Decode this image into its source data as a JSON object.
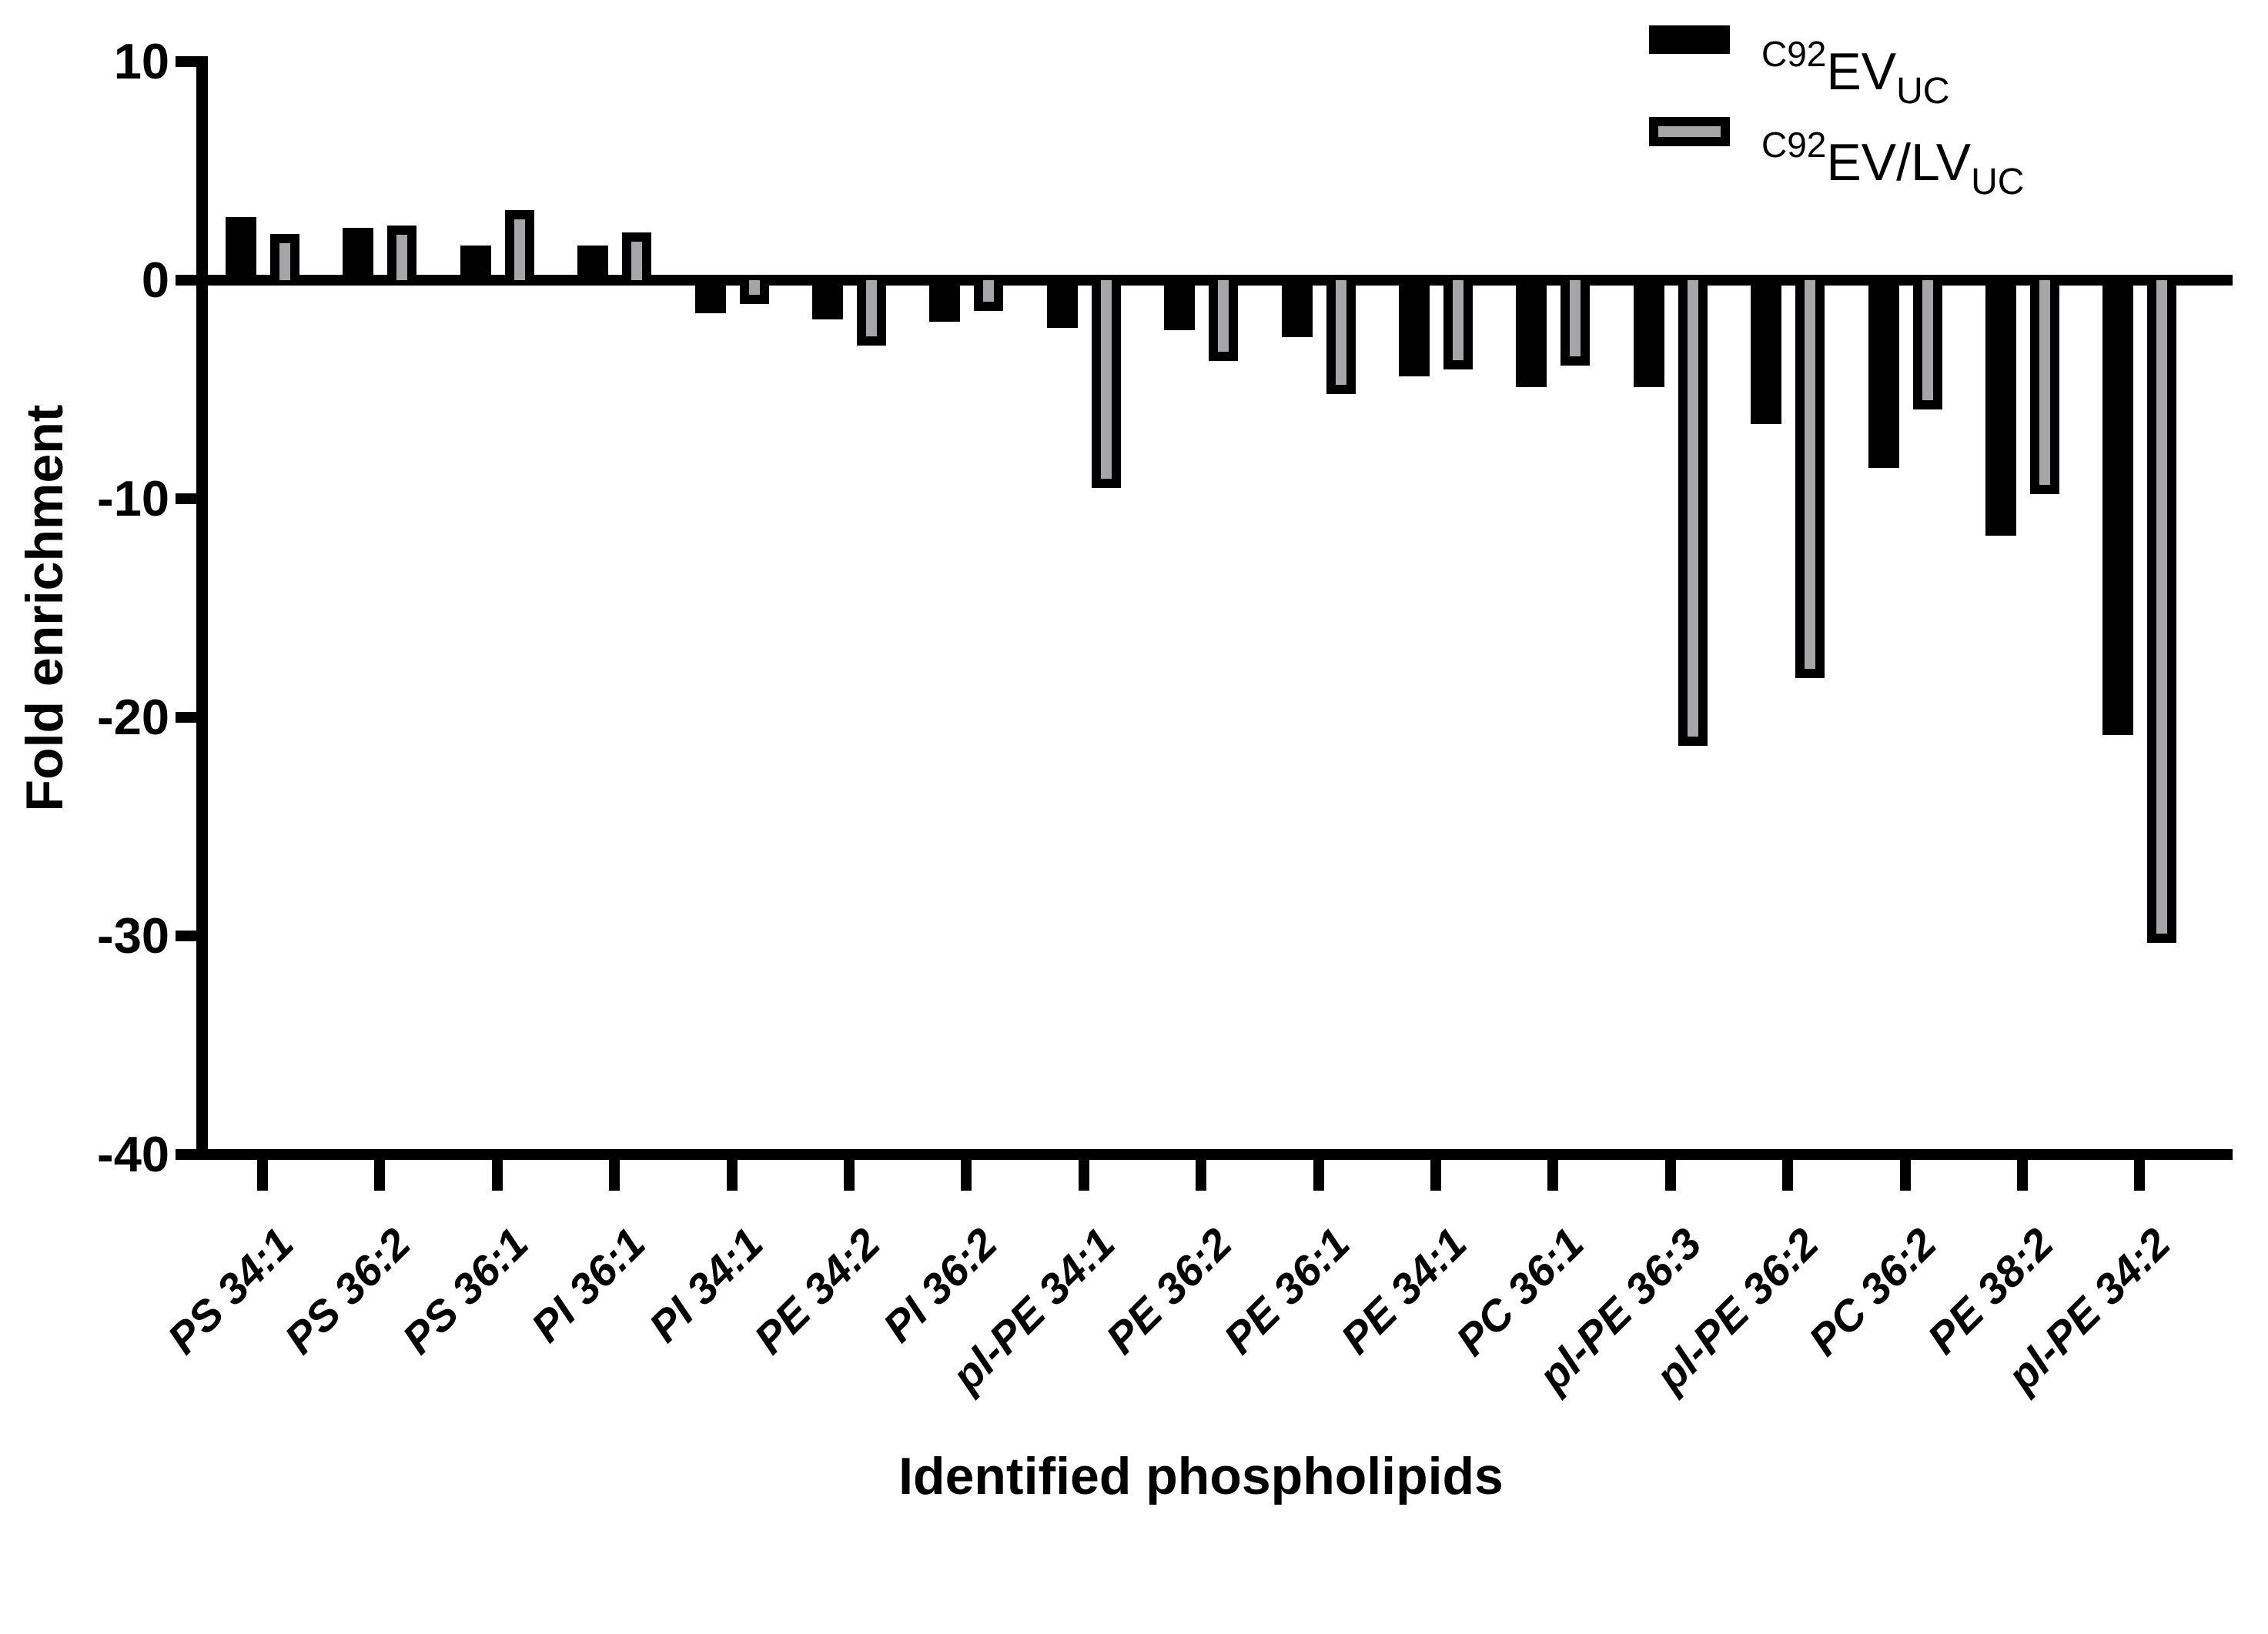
{
  "chart_data": {
    "type": "bar",
    "title": "",
    "xlabel": "Identified phospholipids",
    "ylabel": "Fold enrichment",
    "ylim": [
      -40,
      10
    ],
    "yticks": [
      10,
      0,
      -10,
      -20,
      -30,
      -40
    ],
    "grid": false,
    "legend_position": "top-right",
    "categories": [
      "PS 34:1",
      "PS 36:2",
      "PS 36:1",
      "PI 36:1",
      "PI 34:1",
      "PE 34:2",
      "PI 36:2",
      "pl-PE 34:1",
      "PE 36:2",
      "PE 36:1",
      "PE 34:1",
      "PC 36:1",
      "pl-PE 36:3",
      "pl-PE 36:2",
      "PC 36:2",
      "PE 38:2",
      "pl-PE 34:2"
    ],
    "series": [
      {
        "name": "C92EV UC",
        "name_parts": {
          "sup": "C92",
          "main": "EV",
          "sub": "UC"
        },
        "color": "#000000",
        "style": "solid",
        "values": [
          2.9,
          2.4,
          1.6,
          1.6,
          -1.5,
          -1.8,
          -1.9,
          -2.2,
          -2.3,
          -2.6,
          -4.4,
          -4.9,
          -4.9,
          -6.6,
          -8.6,
          -11.7,
          -20.8
        ]
      },
      {
        "name": "C92EV/LV UC",
        "name_parts": {
          "sup": "C92",
          "main": "EV/LV",
          "sub": "UC"
        },
        "color": "#a6a6a8",
        "style": "outlined",
        "values": [
          2.1,
          2.5,
          3.2,
          2.2,
          -1.1,
          -3.0,
          -1.4,
          -9.5,
          -3.7,
          -5.2,
          -4.1,
          -3.9,
          -21.3,
          -18.2,
          -5.9,
          -9.8,
          -30.3
        ]
      }
    ],
    "colors": {
      "bar_black": "#000000",
      "bar_gray": "#a6a6a8",
      "axis": "#000000",
      "background": "#ffffff"
    }
  }
}
